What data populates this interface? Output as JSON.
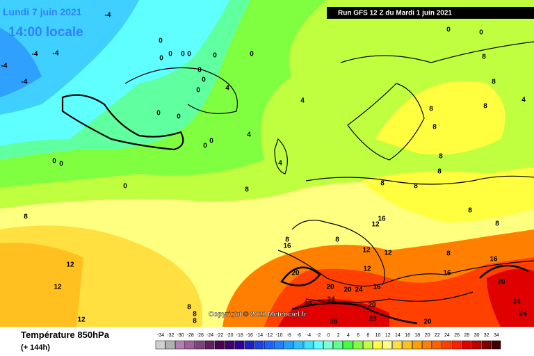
{
  "header": {
    "date": "Lundi 7 juin 2021",
    "time": "14:00 locale",
    "run": "Run GFS 12 Z du Mardi 1 juin 2021"
  },
  "copyright": "Copyright © 2021 Meteociel.fr",
  "footer": {
    "title": "Température 850hPa",
    "lead": "(+ 144h)"
  },
  "legend": {
    "labels": [
      -34,
      -32,
      -30,
      -28,
      -26,
      -24,
      -22,
      -20,
      -18,
      -16,
      -14,
      -12,
      -10,
      -8,
      -6,
      -4,
      -2,
      0,
      2,
      4,
      6,
      8,
      10,
      12,
      14,
      16,
      18,
      20,
      22,
      24,
      26,
      28,
      30,
      32,
      34
    ],
    "colors": [
      "#d0d0d0",
      "#b0b0b0",
      "#b080b0",
      "#a060a0",
      "#804080",
      "#602060",
      "#500050",
      "#400070",
      "#3000a0",
      "#2020c0",
      "#2040e0",
      "#2060ff",
      "#2080ff",
      "#20a0ff",
      "#30c0ff",
      "#40e0ff",
      "#60ffff",
      "#80ffd0",
      "#60ff90",
      "#40ff40",
      "#80ff40",
      "#c0ff40",
      "#ffff40",
      "#ffff80",
      "#ffe040",
      "#ffc020",
      "#ffa000",
      "#ff8000",
      "#ff6000",
      "#ff4000",
      "#ff2000",
      "#e00000",
      "#c00000",
      "#800000",
      "#400000"
    ]
  },
  "map": {
    "isotherm_labels": [
      -4,
      -4,
      -4,
      -4,
      -4,
      0,
      0,
      0,
      0,
      0,
      0,
      0,
      0,
      0,
      0,
      4,
      4,
      0,
      0,
      4,
      0,
      0,
      0,
      0,
      0,
      4,
      8,
      8,
      8,
      8,
      8,
      8,
      8,
      8,
      8,
      8,
      8,
      8,
      16,
      12,
      8,
      8,
      16,
      12,
      12,
      12,
      8,
      16,
      16,
      12,
      12,
      12,
      8,
      8,
      8,
      20,
      20,
      20,
      24,
      16,
      24,
      28,
      20,
      20,
      24,
      24,
      28,
      28,
      20,
      4,
      8,
      0,
      0
    ]
  }
}
